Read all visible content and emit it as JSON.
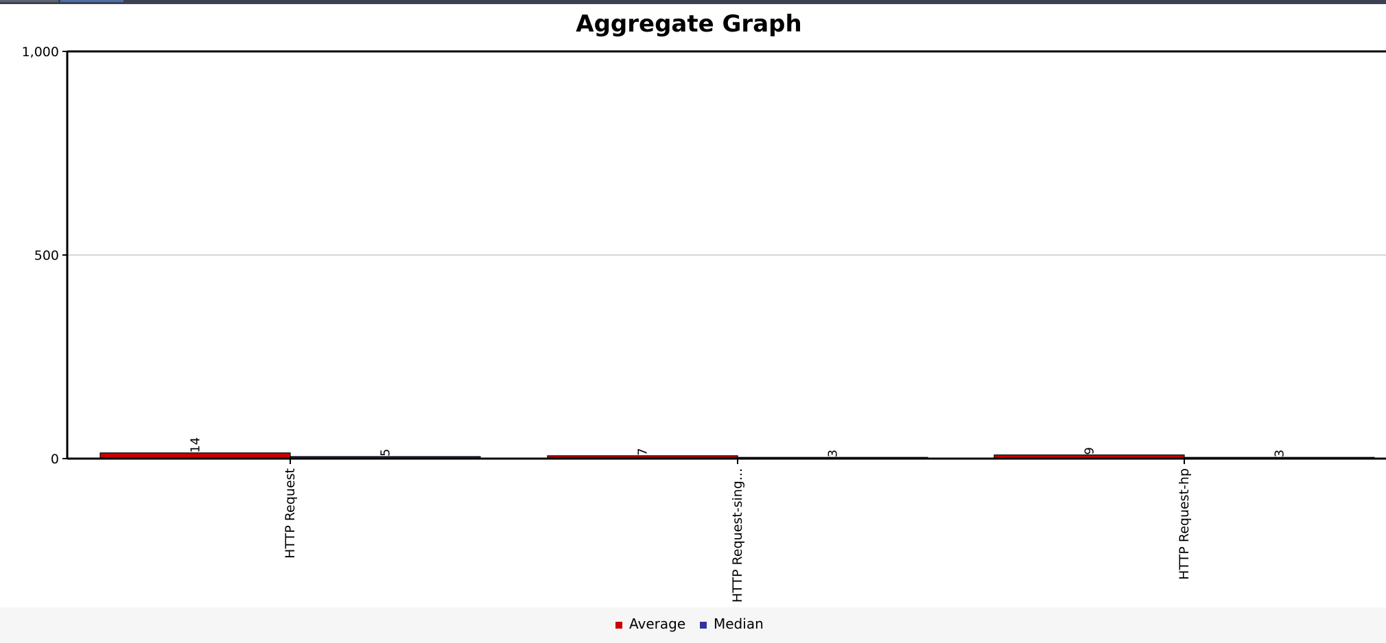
{
  "colors": {
    "average": "#cc0000",
    "median": "#333399",
    "gridline": "#c8c8c8",
    "axis": "#000000",
    "top_bar": "#3b4150"
  },
  "chart_data": {
    "type": "bar",
    "title": "Aggregate Graph",
    "xlabel": "",
    "ylabel": "",
    "categories": [
      "HTTP Request",
      "HTTP Request-sing...",
      "HTTP Request-hp"
    ],
    "series": [
      {
        "name": "Average",
        "values": [
          14,
          7,
          9
        ],
        "color": "#cc0000"
      },
      {
        "name": "Median",
        "values": [
          5,
          3,
          3
        ],
        "color": "#333399"
      }
    ],
    "ylim": [
      0,
      1000
    ],
    "yticks": [
      0,
      500,
      1000
    ],
    "ytick_labels": [
      "0",
      "500",
      "1,000"
    ],
    "grid": true,
    "legend": "bottom-center",
    "data_labels": true
  }
}
